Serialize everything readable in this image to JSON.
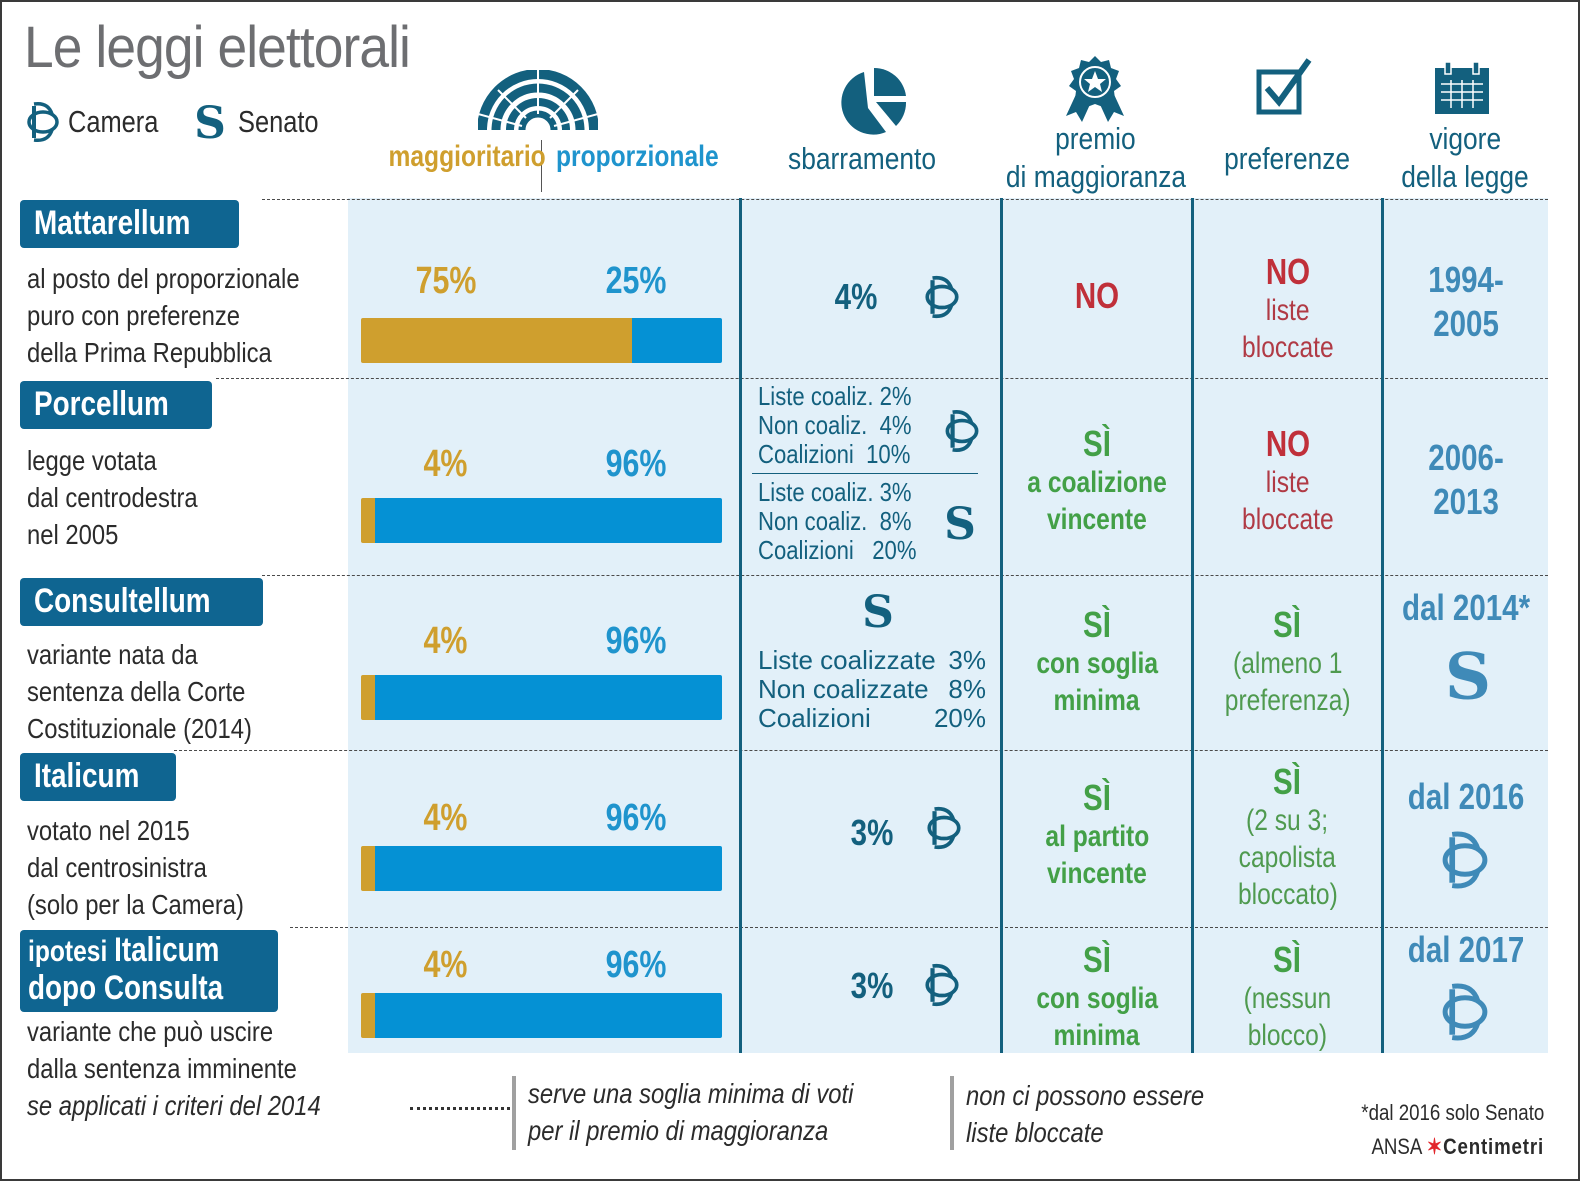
{
  "title": "Le leggi elettorali",
  "legend": {
    "camera": {
      "icon": "camera-icon",
      "label": "Camera"
    },
    "senato": {
      "icon": "senato-icon",
      "label": "Senato"
    }
  },
  "colors": {
    "maggioritario": "#cf9f2e",
    "proporzionale": "#0591d4",
    "header_navy": "#13607e",
    "no_red": "#c0303a",
    "si_green": "#43a047",
    "year_steel": "#3f8ab8",
    "panel_bg": "#e2f0f9"
  },
  "headers": {
    "system": {
      "icon": "parliament-hemicycle-icon",
      "maggioritario": "maggioritario",
      "proporzionale": "proporzionale"
    },
    "sbarramento": {
      "icon": "pie-chart-icon",
      "label": "sbarramento"
    },
    "premio": {
      "icon": "award-ribbon-icon",
      "line1": "premio",
      "line2": "di maggioranza"
    },
    "preferenze": {
      "icon": "checkbox-checked-icon",
      "label": "preferenze"
    },
    "vigore": {
      "icon": "calendar-icon",
      "line1": "vigore",
      "line2": "della legge"
    }
  },
  "laws": [
    {
      "name": "Mattarellum",
      "desc": [
        "al posto del proporzionale",
        "puro con preferenze",
        "della Prima Repubblica"
      ],
      "maggioritario_pct": 75,
      "maggioritario_label": "75%",
      "proporzionale_pct": 25,
      "proporzionale_label": "25%",
      "sbarramento": {
        "value": "4%",
        "chamber": "camera-icon"
      },
      "premio": {
        "main": "NO"
      },
      "preferenze": {
        "main": "NO",
        "lines": [
          "liste",
          "bloccate"
        ]
      },
      "vigore": {
        "lines": [
          "1994-",
          "2005"
        ]
      }
    },
    {
      "name": "Porcellum",
      "desc": [
        "legge votata",
        "dal centrodestra",
        "nel 2005"
      ],
      "maggioritario_pct": 4,
      "maggioritario_label": "4%",
      "proporzionale_pct": 96,
      "proporzionale_label": "96%",
      "sbarramento": {
        "camera": [
          [
            "Liste coaliz.",
            "2%"
          ],
          [
            "Non coaliz.",
            "4%"
          ],
          [
            "Coalizioni",
            "10%"
          ]
        ],
        "senato": [
          [
            "Liste coaliz.",
            "3%"
          ],
          [
            "Non coaliz.",
            "8%"
          ],
          [
            "Coalizioni",
            "20%"
          ]
        ]
      },
      "premio": {
        "main": "SÌ",
        "lines": [
          "a coalizione",
          "vincente"
        ]
      },
      "preferenze": {
        "main": "NO",
        "lines": [
          "liste",
          "bloccate"
        ]
      },
      "vigore": {
        "lines": [
          "2006-",
          "2013"
        ]
      }
    },
    {
      "name": "Consultellum",
      "desc": [
        "variante nata da",
        "sentenza della Corte",
        "Costituzionale (2014)"
      ],
      "maggioritario_pct": 4,
      "maggioritario_label": "4%",
      "proporzionale_pct": 96,
      "proporzionale_label": "96%",
      "sbarramento": {
        "chamber": "senato-icon",
        "rows": [
          [
            "Liste coalizzate",
            "3%"
          ],
          [
            "Non coalizzate",
            "8%"
          ],
          [
            "Coalizioni",
            "20%"
          ]
        ]
      },
      "premio": {
        "main": "SÌ",
        "lines": [
          "con soglia",
          "minima"
        ]
      },
      "preferenze": {
        "main": "SÌ",
        "lines": [
          "(almeno 1",
          "preferenza)"
        ]
      },
      "vigore": {
        "lines": [
          "dal 2014*"
        ],
        "chamber": "senato-icon"
      }
    },
    {
      "name": "Italicum",
      "desc": [
        "votato nel 2015",
        "dal centrosinistra",
        "(solo per la Camera)"
      ],
      "maggioritario_pct": 4,
      "maggioritario_label": "4%",
      "proporzionale_pct": 96,
      "proporzionale_label": "96%",
      "sbarramento": {
        "value": "3%",
        "chamber": "camera-icon"
      },
      "premio": {
        "main": "SÌ",
        "lines": [
          "al partito",
          "vincente"
        ]
      },
      "preferenze": {
        "main": "SÌ",
        "lines": [
          "(2 su 3;",
          "capolista",
          "bloccato)"
        ]
      },
      "vigore": {
        "lines": [
          "dal 2016"
        ],
        "chamber": "camera-icon"
      }
    },
    {
      "name_light": "ipotesi ",
      "name": "Italicum",
      "name_line2": "dopo Consulta",
      "desc": [
        "variante che può uscire",
        "dalla sentenza imminente"
      ],
      "desc_italic": "se applicati i criteri del 2014",
      "maggioritario_pct": 4,
      "maggioritario_label": "4%",
      "proporzionale_pct": 96,
      "proporzionale_label": "96%",
      "sbarramento": {
        "value": "3%",
        "chamber": "camera-icon"
      },
      "premio": {
        "main": "SÌ",
        "lines": [
          "con soglia",
          "minima"
        ]
      },
      "preferenze": {
        "main": "SÌ",
        "lines": [
          "(nessun",
          "blocco)"
        ]
      },
      "vigore": {
        "lines": [
          "dal 2017"
        ],
        "chamber": "camera-icon"
      }
    }
  ],
  "footer": {
    "note_premio": [
      "serve una soglia minima di voti",
      "per il premio di maggioranza"
    ],
    "note_preferenze": [
      "non ci possono essere",
      "liste bloccate"
    ],
    "footnote": "*dal 2016 solo Senato",
    "credit_ansa": "ANSA",
    "credit_brand": "Centimetri"
  }
}
